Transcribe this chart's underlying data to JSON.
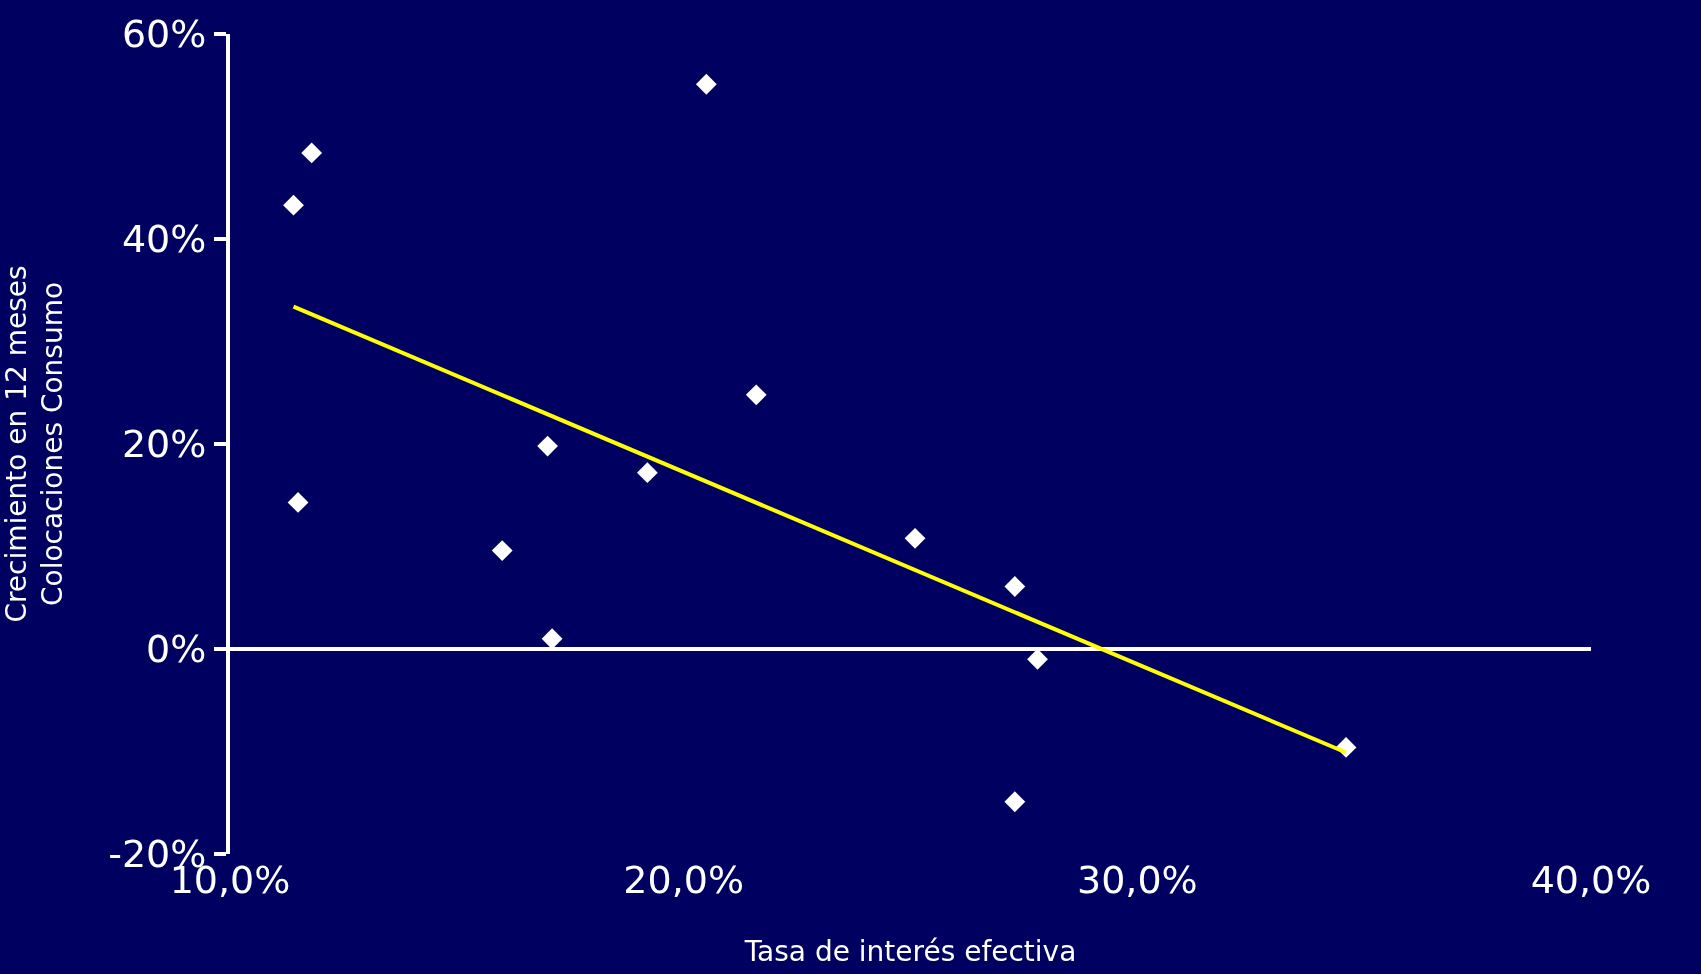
{
  "chart_data": {
    "type": "scatter",
    "xlabel": "Tasa de interés efectiva",
    "ylabel": "Crecimiento en 12 meses\nColocaciones Consumo",
    "series": [
      {
        "color": "#ffffff",
        "marker": "diamond",
        "x": [
          11.4,
          11.8,
          11.5,
          16.0,
          17.0,
          17.1,
          19.2,
          20.5,
          21.6,
          25.1,
          27.3,
          27.8,
          27.3,
          34.6
        ],
        "values": [
          43.3,
          48.4,
          14.3,
          9.6,
          19.8,
          1.0,
          17.2,
          55.1,
          24.8,
          10.8,
          6.1,
          -1.0,
          -14.9,
          -9.6
        ]
      },
      {
        "type": "line",
        "color": "#ffff00",
        "marker": "none",
        "line_style": "solid",
        "x": [
          11.4,
          34.6
        ],
        "values": [
          33.4,
          -10.1
        ]
      }
    ],
    "xlim": [
      10,
      40
    ],
    "xticks": [
      {
        "value": 10,
        "label": "10,0%"
      },
      {
        "value": 20,
        "label": "20,0%"
      },
      {
        "value": 30,
        "label": "30,0%"
      },
      {
        "value": 40,
        "label": "40,0%"
      }
    ],
    "ylim": [
      -20,
      60
    ],
    "yticks": [
      {
        "value": -20,
        "label": "-20%"
      },
      {
        "value": 0,
        "label": "0%"
      },
      {
        "value": 20,
        "label": "20%"
      },
      {
        "value": 40,
        "label": "40%"
      },
      {
        "value": 60,
        "label": "60%"
      }
    ],
    "ref_lines": [
      {
        "axis": "y",
        "value": 0,
        "color": "#ffffff",
        "line_style": "solid"
      }
    ],
    "grid": false
  }
}
